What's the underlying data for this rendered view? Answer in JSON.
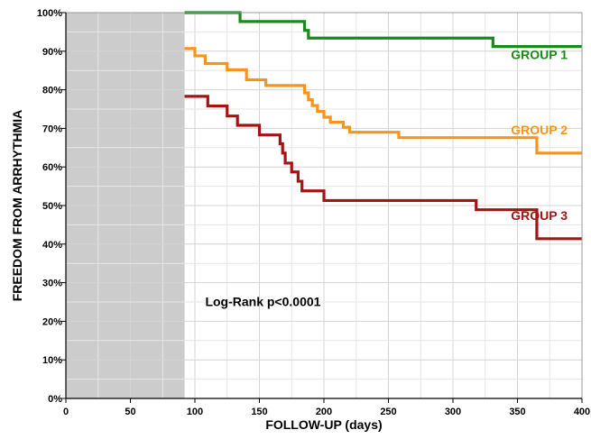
{
  "chart_data": {
    "type": "line",
    "step": true,
    "xlabel": "FOLLOW-UP (days)",
    "ylabel": "FREEDOM FROM ARRHYTHMIA",
    "xlim": [
      0,
      400
    ],
    "ylim": [
      0,
      100
    ],
    "xticks": [
      0,
      50,
      100,
      150,
      200,
      250,
      300,
      350,
      400
    ],
    "yticks": [
      0,
      10,
      20,
      30,
      40,
      50,
      60,
      70,
      80,
      90,
      100
    ],
    "ytick_suffix": "%",
    "grid": true,
    "shaded_region": {
      "x": [
        0,
        92
      ],
      "color": "#cccccc"
    },
    "annotation": "Log-Rank p<0.0001",
    "series": [
      {
        "name": "GROUP 1",
        "color": "#1a8a1a",
        "points": [
          [
            92,
            100
          ],
          [
            135,
            100
          ],
          [
            135,
            97.7
          ],
          [
            185,
            97.7
          ],
          [
            185,
            95.4
          ],
          [
            188,
            95.4
          ],
          [
            188,
            93.4
          ],
          [
            331,
            93.4
          ],
          [
            331,
            91.2
          ],
          [
            400,
            91.2
          ]
        ]
      },
      {
        "name": "GROUP 2",
        "color": "#f7941d",
        "points": [
          [
            92,
            90.7
          ],
          [
            100,
            90.7
          ],
          [
            100,
            88.8
          ],
          [
            108,
            88.8
          ],
          [
            108,
            86.8
          ],
          [
            125,
            86.8
          ],
          [
            125,
            85.2
          ],
          [
            140,
            85.2
          ],
          [
            140,
            82.6
          ],
          [
            155,
            82.6
          ],
          [
            155,
            81.1
          ],
          [
            185,
            81.1
          ],
          [
            185,
            79.2
          ],
          [
            188,
            79.2
          ],
          [
            188,
            77.4
          ],
          [
            191,
            77.4
          ],
          [
            191,
            75.9
          ],
          [
            195,
            75.9
          ],
          [
            195,
            74.4
          ],
          [
            200,
            74.4
          ],
          [
            200,
            72.9
          ],
          [
            205,
            72.9
          ],
          [
            205,
            71.6
          ],
          [
            215,
            71.6
          ],
          [
            215,
            70.3
          ],
          [
            220,
            70.3
          ],
          [
            220,
            69.0
          ],
          [
            258,
            69.0
          ],
          [
            258,
            67.6
          ],
          [
            365,
            67.6
          ],
          [
            365,
            63.6
          ],
          [
            400,
            63.6
          ]
        ]
      },
      {
        "name": "GROUP 3",
        "color": "#a31515",
        "points": [
          [
            92,
            78.3
          ],
          [
            110,
            78.3
          ],
          [
            110,
            75.8
          ],
          [
            125,
            75.8
          ],
          [
            125,
            73.2
          ],
          [
            133,
            73.2
          ],
          [
            133,
            70.8
          ],
          [
            150,
            70.8
          ],
          [
            150,
            68.3
          ],
          [
            166,
            68.3
          ],
          [
            166,
            66.0
          ],
          [
            168,
            66.0
          ],
          [
            168,
            63.6
          ],
          [
            170,
            63.6
          ],
          [
            170,
            61.0
          ],
          [
            175,
            61.0
          ],
          [
            175,
            58.7
          ],
          [
            180,
            58.7
          ],
          [
            180,
            56.3
          ],
          [
            183,
            56.3
          ],
          [
            183,
            53.8
          ],
          [
            200,
            53.8
          ],
          [
            200,
            51.3
          ],
          [
            318,
            51.3
          ],
          [
            318,
            48.9
          ],
          [
            365,
            48.9
          ],
          [
            365,
            41.4
          ],
          [
            400,
            41.4
          ]
        ]
      }
    ]
  }
}
